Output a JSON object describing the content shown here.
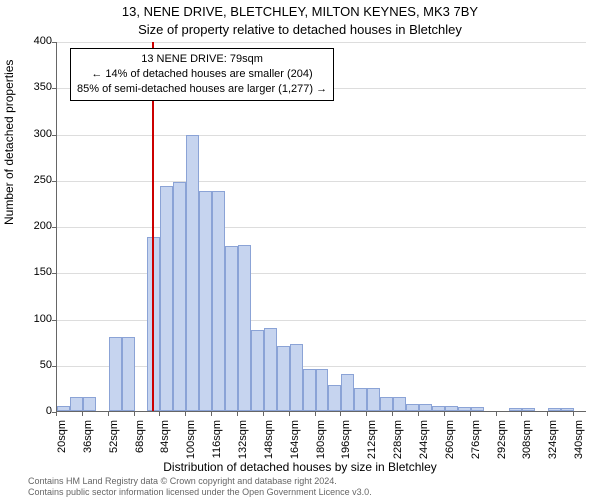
{
  "chart": {
    "type": "histogram",
    "title_line1": "13, NENE DRIVE, BLETCHLEY, MILTON KEYNES, MK3 7BY",
    "title_line2": "Size of property relative to detached houses in Bletchley",
    "y_axis_title": "Number of detached properties",
    "x_axis_title": "Distribution of detached houses by size in Bletchley",
    "ylim": [
      0,
      400
    ],
    "ytick_step": 50,
    "bar_color": "#c6d4ef",
    "bar_border": "#8ba3d6",
    "grid_color": "#dddddd",
    "background_color": "#ffffff",
    "marker_color": "#cc0000",
    "marker_x_value": 79,
    "x_start": 20,
    "x_step": 16,
    "x_ticks": [
      20,
      36,
      52,
      68,
      84,
      100,
      116,
      132,
      148,
      164,
      180,
      196,
      212,
      228,
      244,
      260,
      276,
      292,
      308,
      324,
      340
    ],
    "x_tick_suffix": "sqm",
    "bars": [
      {
        "x": 20,
        "v": 5
      },
      {
        "x": 28,
        "v": 15
      },
      {
        "x": 36,
        "v": 15
      },
      {
        "x": 44,
        "v": 0
      },
      {
        "x": 52,
        "v": 80
      },
      {
        "x": 60,
        "v": 80
      },
      {
        "x": 68,
        "v": 0
      },
      {
        "x": 76,
        "v": 188
      },
      {
        "x": 84,
        "v": 243
      },
      {
        "x": 92,
        "v": 248
      },
      {
        "x": 100,
        "v": 298
      },
      {
        "x": 108,
        "v": 238
      },
      {
        "x": 116,
        "v": 238
      },
      {
        "x": 124,
        "v": 178
      },
      {
        "x": 132,
        "v": 180
      },
      {
        "x": 140,
        "v": 88
      },
      {
        "x": 148,
        "v": 90
      },
      {
        "x": 156,
        "v": 70
      },
      {
        "x": 164,
        "v": 72
      },
      {
        "x": 172,
        "v": 45
      },
      {
        "x": 180,
        "v": 45
      },
      {
        "x": 188,
        "v": 28
      },
      {
        "x": 196,
        "v": 40
      },
      {
        "x": 204,
        "v": 25
      },
      {
        "x": 212,
        "v": 25
      },
      {
        "x": 220,
        "v": 15
      },
      {
        "x": 228,
        "v": 15
      },
      {
        "x": 236,
        "v": 8
      },
      {
        "x": 244,
        "v": 8
      },
      {
        "x": 252,
        "v": 5
      },
      {
        "x": 260,
        "v": 5
      },
      {
        "x": 268,
        "v": 4
      },
      {
        "x": 276,
        "v": 4
      },
      {
        "x": 284,
        "v": 0
      },
      {
        "x": 292,
        "v": 0
      },
      {
        "x": 300,
        "v": 3
      },
      {
        "x": 308,
        "v": 3
      },
      {
        "x": 316,
        "v": 0
      },
      {
        "x": 324,
        "v": 3
      },
      {
        "x": 332,
        "v": 3
      },
      {
        "x": 340,
        "v": 0
      }
    ],
    "annotation": {
      "line1": "13 NENE DRIVE: 79sqm",
      "line2": "← 14% of detached houses are smaller (204)",
      "line3": "85% of semi-detached houses are larger (1,277) →"
    },
    "footer_line1": "Contains HM Land Registry data © Crown copyright and database right 2024.",
    "footer_line2": "Contains public sector information licensed under the Open Government Licence v3.0."
  }
}
